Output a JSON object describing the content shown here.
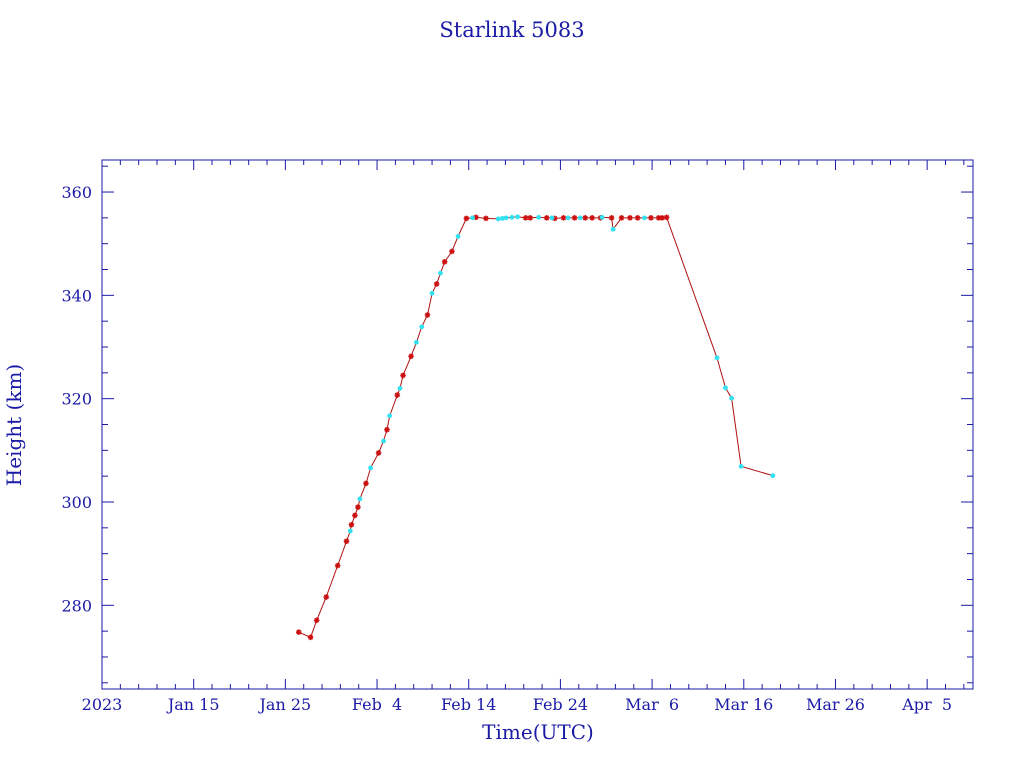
{
  "chart_data": {
    "type": "scatter",
    "title": "Starlink 5083",
    "xlabel": "Time(UTC)",
    "ylabel": "Height (km)",
    "x_range": [
      "2023-01-05",
      "2023-04-10"
    ],
    "y_range": [
      263.8,
      366.2
    ],
    "x_tick_labels": [
      {
        "date": "2023-01-05",
        "label": "2023"
      },
      {
        "date": "2023-01-15",
        "label": "Jan 15"
      },
      {
        "date": "2023-01-25",
        "label": "Jan 25"
      },
      {
        "date": "2023-02-04",
        "label": "Feb  4"
      },
      {
        "date": "2023-02-14",
        "label": "Feb 14"
      },
      {
        "date": "2023-02-24",
        "label": "Feb 24"
      },
      {
        "date": "2023-03-06",
        "label": "Mar  6"
      },
      {
        "date": "2023-03-16",
        "label": "Mar 16"
      },
      {
        "date": "2023-03-26",
        "label": "Mar 26"
      },
      {
        "date": "2023-04-05",
        "label": "Apr  5"
      }
    ],
    "y_ticks": [
      280,
      300,
      320,
      340,
      360
    ],
    "y_tick_labels": [
      "280",
      "300",
      "320",
      "340",
      "360"
    ],
    "grid": false,
    "colors": {
      "axis": "#1a1aa6",
      "line": "#b01010",
      "red_marker": "#cc1010",
      "cyan_marker": "#33e0f0"
    },
    "series": [
      {
        "marker": "red-asterisk",
        "points": [
          [
            "2023-01-26 11:00",
            274.8
          ],
          [
            "2023-01-27 18:00",
            273.8
          ],
          [
            "2023-01-28 10:00",
            277.1
          ],
          [
            "2023-01-29 11:00",
            281.6
          ],
          [
            "2023-01-30 17:00",
            287.7
          ],
          [
            "2023-01-31 16:00",
            292.4
          ],
          [
            "2023-02-01 05:00",
            295.6
          ],
          [
            "2023-02-01 14:00",
            297.4
          ],
          [
            "2023-02-01 22:00",
            299.0
          ],
          [
            "2023-02-02 19:00",
            303.6
          ],
          [
            "2023-02-04 04:00",
            309.5
          ],
          [
            "2023-02-05 02:00",
            314.0
          ],
          [
            "2023-02-06 05:00",
            320.7
          ],
          [
            "2023-02-06 20:00",
            324.5
          ],
          [
            "2023-02-07 17:00",
            328.2
          ],
          [
            "2023-02-09 12:00",
            336.2
          ],
          [
            "2023-02-10 12:00",
            342.2
          ],
          [
            "2023-02-11 09:00",
            346.5
          ],
          [
            "2023-02-12 04:00",
            348.5
          ],
          [
            "2023-02-13 18:00",
            354.9
          ],
          [
            "2023-02-14 19:00",
            355.1
          ],
          [
            "2023-02-15 21:00",
            354.9
          ],
          [
            "2023-02-20 05:00",
            355.0
          ],
          [
            "2023-02-20 17:00",
            355.0
          ],
          [
            "2023-02-22 12:00",
            355.0
          ],
          [
            "2023-02-23 09:00",
            354.9
          ],
          [
            "2023-02-24 08:00",
            355.0
          ],
          [
            "2023-02-25 13:00",
            355.0
          ],
          [
            "2023-02-26 17:00",
            355.0
          ],
          [
            "2023-02-27 11:00",
            355.0
          ],
          [
            "2023-02-28 09:00",
            355.0
          ],
          [
            "2023-03-01 14:00",
            355.0
          ],
          [
            "2023-03-02 16:00",
            355.0
          ],
          [
            "2023-03-03 14:00",
            355.0
          ],
          [
            "2023-03-04 10:00",
            355.0
          ],
          [
            "2023-03-05 21:00",
            355.0
          ],
          [
            "2023-03-06 17:00",
            355.0
          ],
          [
            "2023-03-07 02:00",
            355.0
          ],
          [
            "2023-03-07 14:00",
            355.1
          ]
        ]
      },
      {
        "marker": "cyan-dot",
        "points": [
          [
            "2023-02-01 02:00",
            294.4
          ],
          [
            "2023-02-02 03:00",
            300.6
          ],
          [
            "2023-02-03 07:00",
            306.6
          ],
          [
            "2023-02-04 17:00",
            311.8
          ],
          [
            "2023-02-05 09:00",
            316.7
          ],
          [
            "2023-02-06 12:00",
            322.0
          ],
          [
            "2023-02-08 07:00",
            330.9
          ],
          [
            "2023-02-08 21:00",
            333.9
          ],
          [
            "2023-02-10 00:00",
            340.4
          ],
          [
            "2023-02-10 22:00",
            344.3
          ],
          [
            "2023-02-12 20:00",
            351.4
          ],
          [
            "2023-02-14 10:00",
            355.0
          ],
          [
            "2023-02-17 05:00",
            354.8
          ],
          [
            "2023-02-17 16:00",
            354.9
          ],
          [
            "2023-02-18 02:00",
            355.0
          ],
          [
            "2023-02-18 17:00",
            355.1
          ],
          [
            "2023-02-19 08:00",
            355.2
          ],
          [
            "2023-02-21 15:00",
            355.1
          ],
          [
            "2023-02-23 02:00",
            355.0
          ],
          [
            "2023-02-24 20:00",
            355.0
          ],
          [
            "2023-02-26 04:00",
            355.0
          ],
          [
            "2023-02-28 13:00",
            355.1
          ],
          [
            "2023-03-01 18:00",
            352.8
          ],
          [
            "2023-03-05 04:00",
            355.0
          ],
          [
            "2023-03-13 02:00",
            327.9
          ],
          [
            "2023-03-14 00:00",
            322.1
          ],
          [
            "2023-03-14 16:00",
            320.1
          ],
          [
            "2023-03-15 17:00",
            306.9
          ],
          [
            "2023-03-19 04:00",
            305.1
          ]
        ]
      }
    ]
  }
}
